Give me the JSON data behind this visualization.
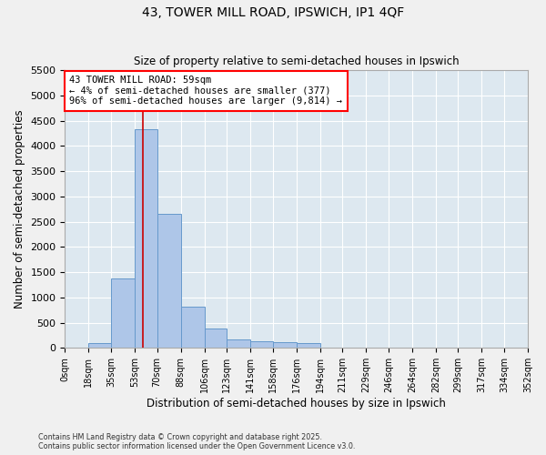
{
  "title_line1": "43, TOWER MILL ROAD, IPSWICH, IP1 4QF",
  "title_line2": "Size of property relative to semi-detached houses in Ipswich",
  "xlabel": "Distribution of semi-detached houses by size in Ipswich",
  "ylabel": "Number of semi-detached properties",
  "annotation_line1": "43 TOWER MILL ROAD: 59sqm",
  "annotation_line2": "← 4% of semi-detached houses are smaller (377)",
  "annotation_line3": "96% of semi-detached houses are larger (9,814) →",
  "footer_line1": "Contains HM Land Registry data © Crown copyright and database right 2025.",
  "footer_line2": "Contains public sector information licensed under the Open Government Licence v3.0.",
  "bar_color": "#aec6e8",
  "bar_edge_color": "#6699cc",
  "background_color": "#dde8f0",
  "grid_color": "#ffffff",
  "fig_background": "#f0f0f0",
  "vline_color": "#cc0000",
  "vline_x": 59,
  "bin_edges": [
    0,
    18,
    35,
    53,
    70,
    88,
    106,
    123,
    141,
    158,
    176,
    194,
    211,
    229,
    246,
    264,
    282,
    299,
    317,
    334,
    352
  ],
  "bin_values": [
    5,
    100,
    1380,
    4330,
    2650,
    810,
    380,
    175,
    130,
    110,
    100,
    5,
    0,
    0,
    0,
    0,
    0,
    0,
    0,
    0
  ],
  "ylim": [
    0,
    5500
  ],
  "yticks": [
    0,
    500,
    1000,
    1500,
    2000,
    2500,
    3000,
    3500,
    4000,
    4500,
    5000,
    5500
  ],
  "tick_labels": [
    "0sqm",
    "18sqm",
    "35sqm",
    "53sqm",
    "70sqm",
    "88sqm",
    "106sqm",
    "123sqm",
    "141sqm",
    "158sqm",
    "176sqm",
    "194sqm",
    "211sqm",
    "229sqm",
    "246sqm",
    "264sqm",
    "282sqm",
    "299sqm",
    "317sqm",
    "334sqm",
    "352sqm"
  ]
}
